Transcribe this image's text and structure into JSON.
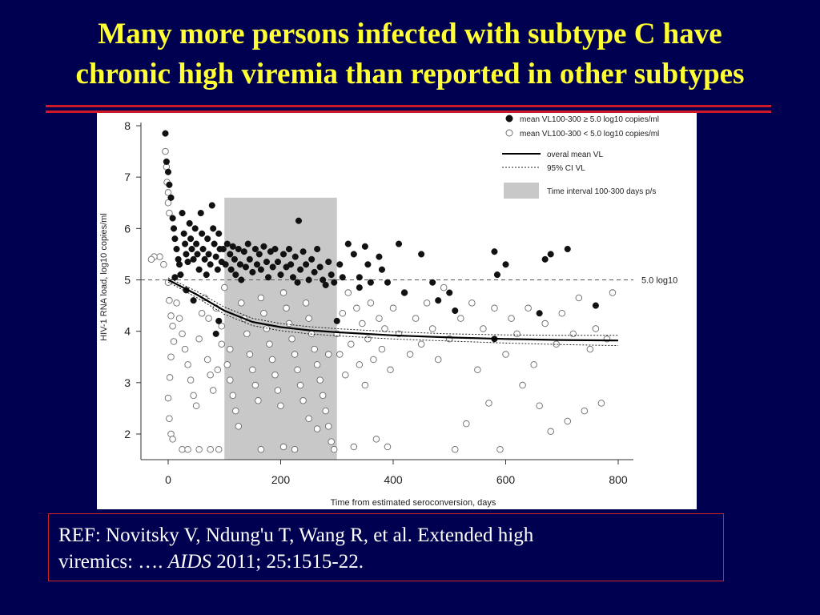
{
  "slide": {
    "title_line1": "Many more persons infected with subtype C have",
    "title_line2": "chronic high viremia than reported in other subtypes"
  },
  "reference": {
    "part1": "REF: Novitsky V, Ndung'u T, Wang R, et al. Extended high",
    "part2": "viremics: …. ",
    "journal": "AIDS",
    "part3": " 2011; 25:1515-22."
  },
  "colors": {
    "background": "#000050",
    "title": "#ffff33",
    "rule": "#cc1a2a",
    "shaded_interval": "#c8c8c8"
  },
  "chart_data": {
    "type": "scatter",
    "xlabel": "Time from estimated seroconversion, days",
    "ylabel": "HIV-1 RNA load, log10 copies/ml",
    "xlim": [
      -50,
      800
    ],
    "ylim": [
      1.5,
      8.2
    ],
    "xticks": [
      "0",
      "200",
      "400",
      "600",
      "800"
    ],
    "yticks": [
      "2",
      "3",
      "4",
      "5",
      "6",
      "7",
      "8"
    ],
    "shaded_interval": [
      100,
      300
    ],
    "reference_line": {
      "y": 5.0,
      "label": "5.0 log10"
    },
    "legend": {
      "placement": "top-right",
      "filled": "mean VL100-300 ≥ 5.0 log10 copies/ml",
      "open": "mean VL100-300 < 5.0 log10 copies/ml",
      "mean": "overal mean VL",
      "ci": "95% CI VL",
      "interval": "Time interval 100-300 days p/s"
    },
    "series": [
      {
        "name": "overal mean VL",
        "x": [
          0,
          50,
          100,
          150,
          200,
          250,
          300,
          400,
          500,
          600,
          700,
          800
        ],
        "y": [
          5.0,
          4.72,
          4.4,
          4.18,
          4.08,
          4.02,
          3.98,
          3.92,
          3.88,
          3.85,
          3.83,
          3.82
        ]
      },
      {
        "name": "95% CI VL",
        "x": [
          0,
          50,
          100,
          150,
          200,
          250,
          300,
          400,
          500,
          600,
          700,
          800
        ],
        "upper": [
          5.04,
          4.78,
          4.47,
          4.25,
          4.15,
          4.09,
          4.05,
          3.99,
          3.95,
          3.93,
          3.92,
          3.92
        ],
        "lower": [
          4.96,
          4.66,
          4.33,
          4.11,
          4.01,
          3.95,
          3.91,
          3.85,
          3.81,
          3.77,
          3.74,
          3.72
        ]
      },
      {
        "name": "mean VL100-300 ≥ 5.0 log10 copies/ml",
        "points": [
          [
            -5,
            7.85
          ],
          [
            -3,
            7.3
          ],
          [
            0,
            7.1
          ],
          [
            2,
            6.85
          ],
          [
            5,
            6.6
          ],
          [
            8,
            6.2
          ],
          [
            10,
            6.0
          ],
          [
            12,
            5.8
          ],
          [
            15,
            5.6
          ],
          [
            18,
            5.4
          ],
          [
            20,
            5.3
          ],
          [
            22,
            5.1
          ],
          [
            25,
            6.3
          ],
          [
            28,
            5.9
          ],
          [
            30,
            5.7
          ],
          [
            32,
            5.5
          ],
          [
            35,
            5.35
          ],
          [
            38,
            6.1
          ],
          [
            40,
            5.8
          ],
          [
            42,
            5.6
          ],
          [
            45,
            5.4
          ],
          [
            48,
            6.0
          ],
          [
            50,
            5.7
          ],
          [
            52,
            5.5
          ],
          [
            55,
            5.2
          ],
          [
            58,
            6.3
          ],
          [
            60,
            5.9
          ],
          [
            62,
            5.6
          ],
          [
            65,
            5.4
          ],
          [
            68,
            5.1
          ],
          [
            70,
            5.8
          ],
          [
            72,
            5.5
          ],
          [
            75,
            5.3
          ],
          [
            78,
            6.45
          ],
          [
            80,
            6.0
          ],
          [
            82,
            5.7
          ],
          [
            85,
            5.45
          ],
          [
            88,
            5.2
          ],
          [
            90,
            5.9
          ],
          [
            92,
            5.6
          ],
          [
            95,
            5.35
          ],
          [
            98,
            5.6
          ],
          [
            102,
            5.3
          ],
          [
            105,
            5.7
          ],
          [
            110,
            5.5
          ],
          [
            112,
            5.2
          ],
          [
            115,
            5.65
          ],
          [
            118,
            5.4
          ],
          [
            120,
            5.1
          ],
          [
            125,
            5.6
          ],
          [
            128,
            5.3
          ],
          [
            130,
            5.0
          ],
          [
            135,
            5.55
          ],
          [
            138,
            5.25
          ],
          [
            142,
            5.7
          ],
          [
            145,
            5.4
          ],
          [
            150,
            5.15
          ],
          [
            155,
            5.6
          ],
          [
            158,
            5.3
          ],
          [
            162,
            5.5
          ],
          [
            165,
            5.2
          ],
          [
            170,
            5.65
          ],
          [
            175,
            5.35
          ],
          [
            178,
            5.05
          ],
          [
            182,
            5.55
          ],
          [
            186,
            5.25
          ],
          [
            190,
            5.6
          ],
          [
            195,
            5.35
          ],
          [
            200,
            5.1
          ],
          [
            205,
            5.5
          ],
          [
            210,
            5.25
          ],
          [
            215,
            5.6
          ],
          [
            218,
            5.3
          ],
          [
            222,
            5.05
          ],
          [
            226,
            5.45
          ],
          [
            232,
            6.15
          ],
          [
            235,
            5.2
          ],
          [
            240,
            5.55
          ],
          [
            245,
            5.3
          ],
          [
            250,
            5.0
          ],
          [
            255,
            5.4
          ],
          [
            260,
            5.15
          ],
          [
            265,
            5.6
          ],
          [
            270,
            5.25
          ],
          [
            275,
            5.0
          ],
          [
            280,
            4.9
          ],
          [
            285,
            5.35
          ],
          [
            290,
            5.1
          ],
          [
            295,
            4.95
          ],
          [
            305,
            5.3
          ],
          [
            310,
            5.05
          ],
          [
            320,
            5.7
          ],
          [
            330,
            5.5
          ],
          [
            340,
            5.05
          ],
          [
            350,
            5.65
          ],
          [
            355,
            5.3
          ],
          [
            360,
            4.95
          ],
          [
            375,
            5.45
          ],
          [
            380,
            5.2
          ],
          [
            390,
            4.95
          ],
          [
            410,
            5.7
          ],
          [
            420,
            4.75
          ],
          [
            450,
            5.5
          ],
          [
            470,
            4.95
          ],
          [
            480,
            4.6
          ],
          [
            500,
            4.75
          ],
          [
            510,
            4.4
          ],
          [
            580,
            5.55
          ],
          [
            585,
            5.1
          ],
          [
            600,
            5.3
          ],
          [
            660,
            4.35
          ],
          [
            670,
            5.4
          ],
          [
            680,
            5.5
          ],
          [
            710,
            5.6
          ],
          [
            760,
            4.5
          ],
          [
            580,
            3.85
          ],
          [
            12,
            5.05
          ],
          [
            32,
            4.8
          ],
          [
            45,
            4.6
          ],
          [
            85,
            3.95
          ],
          [
            90,
            4.2
          ],
          [
            300,
            4.2
          ],
          [
            340,
            4.85
          ],
          [
            230,
            4.95
          ]
        ]
      },
      {
        "name": "mean VL100-300 < 5.0 log10 copies/ml",
        "points": [
          [
            -5,
            7.5
          ],
          [
            -3,
            7.2
          ],
          [
            -2,
            6.9
          ],
          [
            0,
            6.7
          ],
          [
            0,
            6.5
          ],
          [
            2,
            6.3
          ],
          [
            -8,
            5.3
          ],
          [
            -15,
            5.45
          ],
          [
            -25,
            5.45
          ],
          [
            -30,
            5.4
          ],
          [
            0,
            4.95
          ],
          [
            2,
            4.6
          ],
          [
            5,
            4.3
          ],
          [
            8,
            4.1
          ],
          [
            10,
            3.8
          ],
          [
            5,
            3.5
          ],
          [
            3,
            3.1
          ],
          [
            0,
            2.7
          ],
          [
            2,
            2.3
          ],
          [
            5,
            2.0
          ],
          [
            8,
            1.9
          ],
          [
            25,
            1.7
          ],
          [
            35,
            1.7
          ],
          [
            55,
            1.7
          ],
          [
            75,
            1.7
          ],
          [
            90,
            1.7
          ],
          [
            15,
            4.55
          ],
          [
            20,
            4.25
          ],
          [
            25,
            3.95
          ],
          [
            30,
            3.65
          ],
          [
            35,
            3.35
          ],
          [
            40,
            3.05
          ],
          [
            45,
            2.75
          ],
          [
            50,
            2.55
          ],
          [
            55,
            3.85
          ],
          [
            60,
            4.35
          ],
          [
            65,
            4.65
          ],
          [
            70,
            3.45
          ],
          [
            75,
            3.15
          ],
          [
            80,
            2.85
          ],
          [
            85,
            4.45
          ],
          [
            95,
            3.75
          ],
          [
            100,
            4.85
          ],
          [
            105,
            3.35
          ],
          [
            110,
            3.05
          ],
          [
            115,
            2.75
          ],
          [
            120,
            2.45
          ],
          [
            125,
            2.15
          ],
          [
            130,
            4.55
          ],
          [
            135,
            4.25
          ],
          [
            140,
            3.95
          ],
          [
            145,
            3.55
          ],
          [
            150,
            3.25
          ],
          [
            155,
            2.95
          ],
          [
            160,
            2.65
          ],
          [
            165,
            4.65
          ],
          [
            170,
            4.35
          ],
          [
            175,
            4.05
          ],
          [
            180,
            3.75
          ],
          [
            185,
            3.45
          ],
          [
            190,
            3.15
          ],
          [
            195,
            2.85
          ],
          [
            200,
            2.55
          ],
          [
            205,
            4.75
          ],
          [
            210,
            4.45
          ],
          [
            215,
            4.15
          ],
          [
            220,
            3.85
          ],
          [
            225,
            3.55
          ],
          [
            230,
            3.25
          ],
          [
            235,
            2.95
          ],
          [
            240,
            2.65
          ],
          [
            245,
            4.55
          ],
          [
            250,
            4.25
          ],
          [
            255,
            3.95
          ],
          [
            260,
            3.65
          ],
          [
            265,
            3.35
          ],
          [
            270,
            3.05
          ],
          [
            275,
            2.75
          ],
          [
            280,
            2.45
          ],
          [
            285,
            2.15
          ],
          [
            290,
            1.85
          ],
          [
            295,
            1.7
          ],
          [
            300,
            3.95
          ],
          [
            305,
            3.55
          ],
          [
            310,
            4.35
          ],
          [
            315,
            3.15
          ],
          [
            320,
            4.75
          ],
          [
            325,
            3.75
          ],
          [
            330,
            1.75
          ],
          [
            335,
            4.45
          ],
          [
            340,
            3.35
          ],
          [
            345,
            4.15
          ],
          [
            350,
            2.95
          ],
          [
            355,
            3.85
          ],
          [
            360,
            4.55
          ],
          [
            365,
            3.45
          ],
          [
            370,
            1.9
          ],
          [
            375,
            4.25
          ],
          [
            380,
            3.65
          ],
          [
            385,
            4.05
          ],
          [
            390,
            1.75
          ],
          [
            395,
            3.25
          ],
          [
            400,
            4.45
          ],
          [
            410,
            3.95
          ],
          [
            420,
            4.75
          ],
          [
            430,
            3.55
          ],
          [
            440,
            4.25
          ],
          [
            450,
            3.75
          ],
          [
            460,
            4.55
          ],
          [
            470,
            4.05
          ],
          [
            480,
            3.45
          ],
          [
            490,
            4.85
          ],
          [
            500,
            3.85
          ],
          [
            510,
            1.7
          ],
          [
            520,
            4.25
          ],
          [
            530,
            2.2
          ],
          [
            540,
            4.55
          ],
          [
            550,
            3.25
          ],
          [
            560,
            4.05
          ],
          [
            570,
            2.6
          ],
          [
            580,
            4.45
          ],
          [
            590,
            1.7
          ],
          [
            600,
            3.55
          ],
          [
            610,
            4.25
          ],
          [
            620,
            3.95
          ],
          [
            630,
            2.95
          ],
          [
            640,
            4.45
          ],
          [
            650,
            3.35
          ],
          [
            660,
            2.55
          ],
          [
            670,
            4.15
          ],
          [
            680,
            2.05
          ],
          [
            690,
            3.75
          ],
          [
            700,
            4.35
          ],
          [
            710,
            2.25
          ],
          [
            720,
            3.95
          ],
          [
            730,
            4.65
          ],
          [
            740,
            2.45
          ],
          [
            750,
            3.65
          ],
          [
            760,
            4.05
          ],
          [
            770,
            2.6
          ],
          [
            780,
            3.85
          ],
          [
            790,
            4.75
          ],
          [
            165,
            1.7
          ],
          [
            205,
            1.75
          ],
          [
            225,
            1.7
          ],
          [
            250,
            2.3
          ],
          [
            265,
            2.1
          ],
          [
            285,
            3.55
          ],
          [
            110,
            3.65
          ],
          [
            95,
            4.1
          ],
          [
            72,
            4.25
          ],
          [
            88,
            3.25
          ]
        ]
      }
    ]
  }
}
